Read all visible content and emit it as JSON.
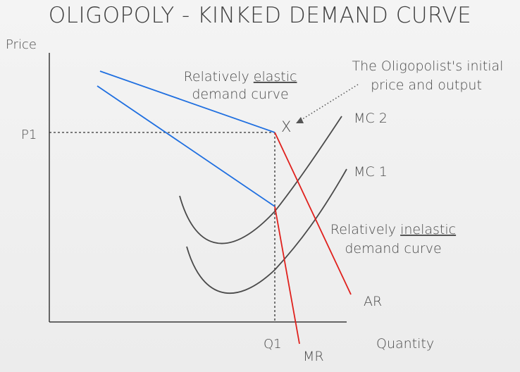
{
  "title": "OLIGOPOLY - KINKED DEMAND CURVE",
  "axes": {
    "y_label": "Price",
    "x_label": "Quantity",
    "price_tick": "P1",
    "quantity_tick": "Q1"
  },
  "labels": {
    "kink_marker": "X",
    "elastic_prefix": "Relatively ",
    "elastic_word": "elastic",
    "elastic_line2": "demand curve",
    "inelastic_prefix": "Relatively ",
    "inelastic_word": "inelastic",
    "inelastic_line2": "demand curve",
    "note_line1": "The Oligopolist's initial",
    "note_line2": "price and output",
    "mc2": "MC 2",
    "mc1": "MC 1",
    "ar": "AR",
    "mr": "MR"
  },
  "colors": {
    "blue_curves": "#1f6fe0",
    "red_curves": "#e0201c",
    "cost_curves": "#4a4a4a",
    "axis": "#3a3a3a",
    "text": "#4a4a4a"
  }
}
